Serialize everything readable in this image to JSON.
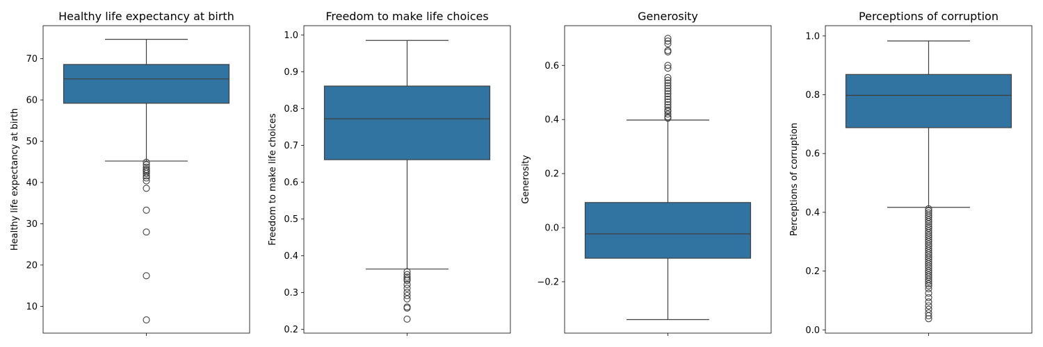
{
  "chart_data": [
    {
      "type": "box",
      "title": "Healthy life expectancy at birth",
      "ylabel": "Healthy life expectancy at birth",
      "xlabel": "",
      "ylim": [
        3.5,
        78
      ],
      "yticks": [
        10,
        20,
        30,
        40,
        50,
        60,
        70
      ],
      "color": "#3274a1",
      "stats": {
        "whisker_low": 45.2,
        "q1": 59.2,
        "median": 65.1,
        "q3": 68.6,
        "whisker_high": 74.7
      },
      "outliers": [
        44.9,
        44.3,
        43.7,
        43.2,
        42.9,
        42.6,
        42.2,
        41.6,
        41.1,
        40.4,
        38.6,
        33.3,
        28.0,
        17.4,
        6.7
      ]
    },
    {
      "type": "box",
      "title": "Freedom to make life choices",
      "ylabel": "Freedom to make life choices",
      "xlabel": "",
      "ylim": [
        0.19,
        1.025
      ],
      "yticks": [
        0.2,
        0.3,
        0.4,
        0.5,
        0.6,
        0.7,
        0.8,
        0.9,
        1.0
      ],
      "color": "#3274a1",
      "stats": {
        "whisker_low": 0.364,
        "q1": 0.661,
        "median": 0.772,
        "q3": 0.861,
        "whisker_high": 0.985
      },
      "outliers": [
        0.357,
        0.349,
        0.342,
        0.337,
        0.333,
        0.322,
        0.312,
        0.301,
        0.292,
        0.283,
        0.261,
        0.258,
        0.228
      ]
    },
    {
      "type": "box",
      "title": "Generosity",
      "ylabel": "Generosity",
      "xlabel": "",
      "ylim": [
        -0.39,
        0.747
      ],
      "yticks": [
        -0.2,
        0.0,
        0.2,
        0.4,
        0.6
      ],
      "color": "#3274a1",
      "stats": {
        "whisker_low": -0.34,
        "q1": -0.113,
        "median": -0.023,
        "q3": 0.093,
        "whisker_high": 0.398
      },
      "outliers": [
        0.7,
        0.69,
        0.68,
        0.655,
        0.65,
        0.6,
        0.59,
        0.555,
        0.545,
        0.535,
        0.525,
        0.515,
        0.505,
        0.495,
        0.485,
        0.475,
        0.465,
        0.455,
        0.445,
        0.435,
        0.43,
        0.42,
        0.41,
        0.405
      ]
    },
    {
      "type": "box",
      "title": "Perceptions of corruption",
      "ylabel": "Perceptions of corruption",
      "xlabel": "",
      "ylim": [
        -0.011,
        1.035
      ],
      "yticks": [
        0.0,
        0.2,
        0.4,
        0.6,
        0.8,
        1.0
      ],
      "color": "#3274a1",
      "stats": {
        "whisker_low": 0.417,
        "q1": 0.688,
        "median": 0.798,
        "q3": 0.869,
        "whisker_high": 0.983
      },
      "outliers": [
        0.412,
        0.405,
        0.398,
        0.39,
        0.383,
        0.375,
        0.368,
        0.36,
        0.352,
        0.345,
        0.337,
        0.33,
        0.322,
        0.315,
        0.307,
        0.3,
        0.292,
        0.285,
        0.277,
        0.27,
        0.262,
        0.255,
        0.247,
        0.24,
        0.232,
        0.225,
        0.217,
        0.21,
        0.202,
        0.195,
        0.187,
        0.18,
        0.172,
        0.165,
        0.157,
        0.15,
        0.14,
        0.125,
        0.11,
        0.095,
        0.082,
        0.07,
        0.058,
        0.048,
        0.038
      ]
    }
  ]
}
